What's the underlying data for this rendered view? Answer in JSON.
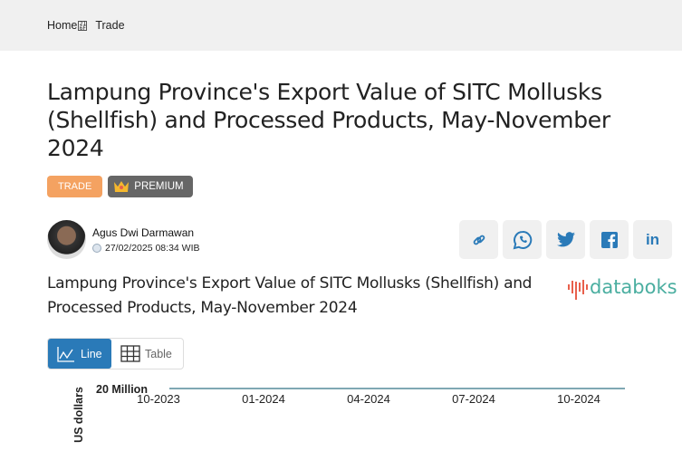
{
  "breadcrumb": {
    "home": "Home",
    "separator_icon": "box-glyph",
    "current": "Trade"
  },
  "article": {
    "title": "Lampung Province's Export Value of SITC Mollusks (Shellfish) and Processed Products, May-November 2024",
    "badges": {
      "category": "TRADE",
      "premium": "PREMIUM"
    },
    "author": {
      "name": "Agus Dwi Darmawan",
      "date": "27/02/2025 08:34 WIB"
    },
    "share": [
      "link-icon",
      "whatsapp-icon",
      "twitter-icon",
      "facebook-icon",
      "linkedin-icon"
    ]
  },
  "chart_section": {
    "title": "Lampung Province's Export Value of SITC Mollusks (Shellfish) and Processed Products, May-November 2024",
    "logo": "databoks",
    "toggle": {
      "line": "Line",
      "table": "Table",
      "active": "Line"
    }
  },
  "chart_data": {
    "type": "line",
    "ylabel": "US dollars",
    "y_ticks": [
      "20 Million"
    ],
    "x_ticks": [
      "10-2023",
      "01-2024",
      "04-2024",
      "07-2024",
      "10-2024"
    ],
    "line_color": "#7fa8b3"
  },
  "colors": {
    "accent": "#2a7ab8",
    "trade_badge": "#f4a261",
    "premium_badge": "#666666",
    "logo_text": "#4aaea0",
    "logo_mark": "#e8604c"
  }
}
